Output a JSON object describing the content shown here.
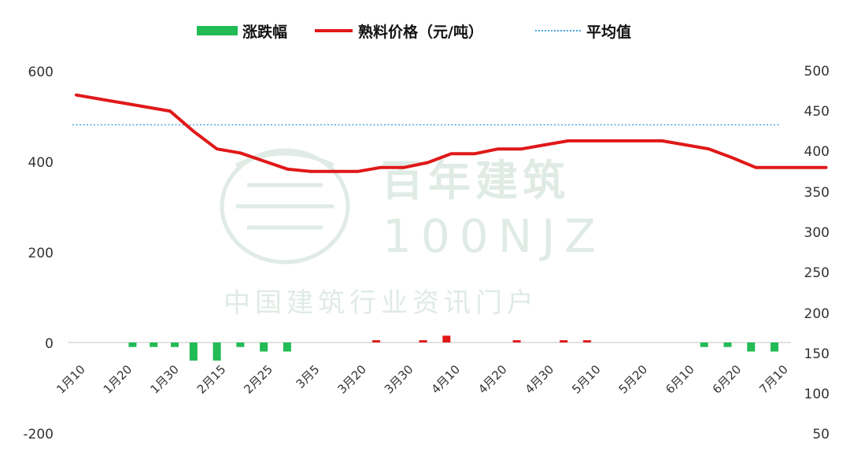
{
  "chart_data": {
    "type": "bar+line",
    "legend": [
      {
        "label": "涨跌幅",
        "kind": "bar",
        "color": "#22bb55"
      },
      {
        "label": "熟料价格（元/吨）",
        "kind": "line",
        "color": "#e01818"
      },
      {
        "label": "平均值",
        "kind": "dotted-line",
        "color": "#4aa3df"
      }
    ],
    "x_ticks": [
      "1月10",
      "1月20",
      "1月30",
      "2月15",
      "2月25",
      "3月5",
      "3月20",
      "3月30",
      "4月10",
      "4月20",
      "4月30",
      "5月10",
      "5月20",
      "6月10",
      "6月20",
      "7月10"
    ],
    "left_axis": {
      "ticks": [
        "600",
        "400",
        "200",
        "0",
        "-200"
      ],
      "ylim": [
        -200,
        600
      ]
    },
    "right_axis": {
      "ticks": [
        "500",
        "450",
        "400",
        "350",
        "300",
        "250",
        "200",
        "150",
        "100",
        "50"
      ],
      "ylim": [
        50,
        500
      ]
    },
    "price": [
      {
        "x": 0,
        "y": 470
      },
      {
        "x": 1,
        "y": 460
      },
      {
        "x": 2,
        "y": 450
      },
      {
        "x": 2.5,
        "y": 425
      },
      {
        "x": 3,
        "y": 403
      },
      {
        "x": 3.5,
        "y": 398
      },
      {
        "x": 4,
        "y": 388
      },
      {
        "x": 4.5,
        "y": 378
      },
      {
        "x": 5,
        "y": 375
      },
      {
        "x": 6,
        "y": 375
      },
      {
        "x": 6.5,
        "y": 380
      },
      {
        "x": 7,
        "y": 380
      },
      {
        "x": 7.5,
        "y": 386
      },
      {
        "x": 8,
        "y": 397
      },
      {
        "x": 8.5,
        "y": 397
      },
      {
        "x": 9,
        "y": 403
      },
      {
        "x": 9.5,
        "y": 403
      },
      {
        "x": 10,
        "y": 408
      },
      {
        "x": 10.5,
        "y": 413
      },
      {
        "x": 11,
        "y": 413
      },
      {
        "x": 12,
        "y": 413
      },
      {
        "x": 12.5,
        "y": 413
      },
      {
        "x": 13,
        "y": 408
      },
      {
        "x": 13.5,
        "y": 403
      },
      {
        "x": 14,
        "y": 392
      },
      {
        "x": 14.5,
        "y": 380
      },
      {
        "x": 15,
        "y": 380
      },
      {
        "x": 16,
        "y": 380
      }
    ],
    "average": 433,
    "change": [
      {
        "x": 1.2,
        "y": -10
      },
      {
        "x": 1.65,
        "y": -10
      },
      {
        "x": 2.1,
        "y": -10
      },
      {
        "x": 2.5,
        "y": -40
      },
      {
        "x": 3,
        "y": -40
      },
      {
        "x": 3.5,
        "y": -10
      },
      {
        "x": 4,
        "y": -20
      },
      {
        "x": 4.5,
        "y": -20
      },
      {
        "x": 6.4,
        "y": 5
      },
      {
        "x": 7.4,
        "y": 5
      },
      {
        "x": 7.9,
        "y": 15
      },
      {
        "x": 9.4,
        "y": 5
      },
      {
        "x": 10.4,
        "y": 5
      },
      {
        "x": 10.9,
        "y": 5
      },
      {
        "x": 13.4,
        "y": -10
      },
      {
        "x": 13.9,
        "y": -10
      },
      {
        "x": 14.4,
        "y": -20
      },
      {
        "x": 14.9,
        "y": -20
      }
    ],
    "up_color": "#e01818",
    "down_color": "#22bb55"
  },
  "watermark": {
    "brand_cn": "百年建筑",
    "brand_en": "100NJZ",
    "tagline": "中国建筑行业资讯门户"
  }
}
